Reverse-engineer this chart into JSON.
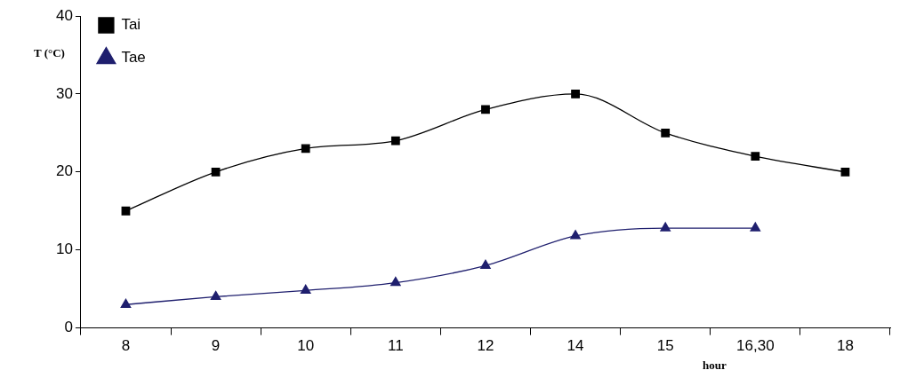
{
  "chart_data": {
    "type": "line",
    "ylabel": "T (°C)",
    "xlabel": "hour",
    "categories": [
      "8",
      "9",
      "10",
      "11",
      "12",
      "14",
      "15",
      "16,30",
      "18"
    ],
    "series": [
      {
        "name": "Tai",
        "color": "#000000",
        "marker": "square",
        "values": [
          15,
          20,
          23,
          24,
          28,
          30,
          25,
          22,
          20
        ]
      },
      {
        "name": "Tae",
        "color": "#1f1f6e",
        "marker": "triangle",
        "values": [
          3,
          4,
          4.8,
          5.8,
          8,
          11.8,
          12.8,
          12.8,
          null
        ]
      }
    ],
    "ylim": [
      0,
      40
    ],
    "yticks": [
      0,
      10,
      20,
      30,
      40
    ],
    "grid": false,
    "legend": "top left"
  }
}
